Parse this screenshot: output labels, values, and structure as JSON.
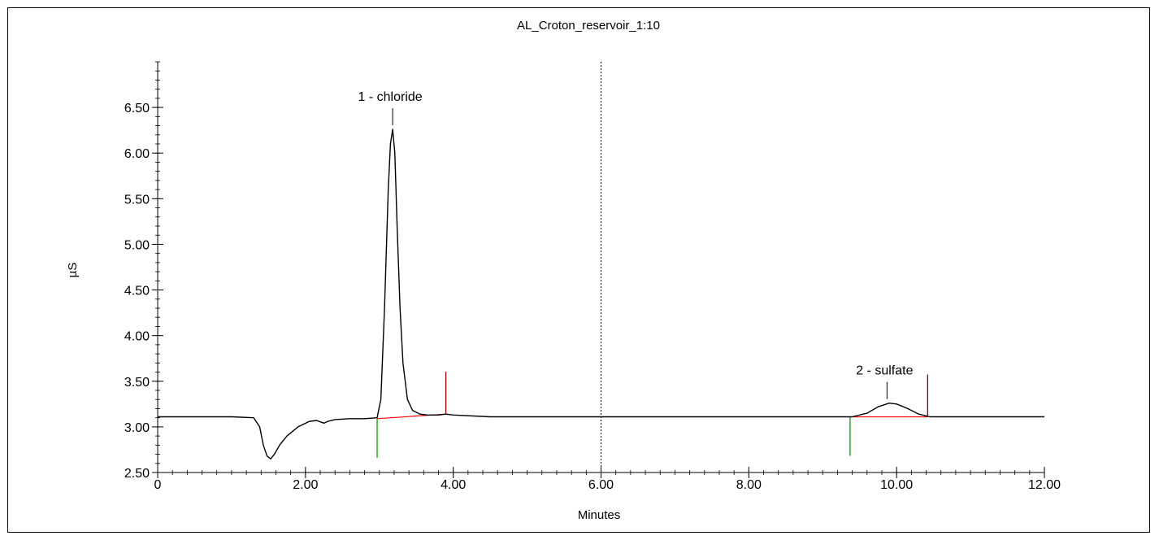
{
  "chart_data": {
    "type": "line",
    "title": "AL_Croton_reservoir_1:10",
    "xlabel": "Minutes",
    "ylabel": "µS",
    "xlim": [
      0,
      12
    ],
    "ylim": [
      2.5,
      7.0
    ],
    "x_ticks": [
      "0",
      "2.00",
      "4.00",
      "6.00",
      "8.00",
      "10.00",
      "12.00"
    ],
    "y_ticks": [
      "2.50",
      "3.00",
      "3.50",
      "4.00",
      "4.50",
      "5.00",
      "5.50",
      "6.00",
      "6.50"
    ],
    "y_tick_values": [
      2.5,
      3.0,
      3.5,
      4.0,
      4.5,
      5.0,
      5.5,
      6.0,
      6.5
    ],
    "grid": false,
    "series": [
      {
        "color": "#000000",
        "x": [
          0,
          0.5,
          1.0,
          1.3,
          1.38,
          1.43,
          1.48,
          1.53,
          1.58,
          1.65,
          1.75,
          1.9,
          2.05,
          2.15,
          2.22,
          2.25,
          2.3,
          2.4,
          2.6,
          2.8,
          2.97,
          3.02,
          3.07,
          3.12,
          3.15,
          3.18,
          3.21,
          3.24,
          3.28,
          3.32,
          3.38,
          3.45,
          3.55,
          3.65,
          3.8,
          3.9,
          4.0,
          4.5,
          5.0,
          5.5,
          6.0,
          6.5,
          7.0,
          7.5,
          8.0,
          8.5,
          9.0,
          9.4,
          9.6,
          9.75,
          9.9,
          10.0,
          10.15,
          10.3,
          10.45,
          10.6,
          11.0,
          11.5,
          12.0
        ],
        "y": [
          3.11,
          3.11,
          3.11,
          3.1,
          3.0,
          2.8,
          2.68,
          2.65,
          2.7,
          2.8,
          2.9,
          3.0,
          3.06,
          3.07,
          3.05,
          3.04,
          3.06,
          3.08,
          3.09,
          3.09,
          3.1,
          3.3,
          4.3,
          5.6,
          6.1,
          6.26,
          6.0,
          5.2,
          4.3,
          3.7,
          3.3,
          3.18,
          3.14,
          3.13,
          3.13,
          3.14,
          3.13,
          3.11,
          3.11,
          3.11,
          3.11,
          3.11,
          3.11,
          3.11,
          3.11,
          3.11,
          3.11,
          3.11,
          3.15,
          3.22,
          3.26,
          3.25,
          3.2,
          3.14,
          3.11,
          3.11,
          3.11,
          3.11,
          3.11
        ]
      }
    ],
    "peaks": [
      {
        "label": "1 - chloride",
        "x": 3.18,
        "y": 6.26,
        "start": 2.97,
        "end": 3.9,
        "baseline_start": 3.09,
        "baseline_end": 3.14
      },
      {
        "label": "2 - sulfate",
        "x": 9.87,
        "y": 3.26,
        "start": 9.37,
        "end": 10.42,
        "baseline_start": 3.11,
        "baseline_end": 3.11
      }
    ],
    "marker_x": 6.0,
    "colors": {
      "trace": "#000000",
      "baseline": "#ff0000",
      "peak_start": "#00a000",
      "peak_end": "#8b0000"
    }
  }
}
